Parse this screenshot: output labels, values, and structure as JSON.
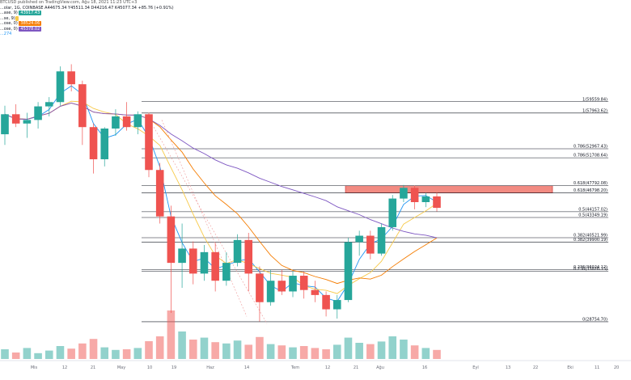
{
  "header": {
    "published": "BTCUSD published on TradingView.com, Ağu 18, 2021 11:23 UTC+3",
    "symbol_line": {
      "symbol": "...olar, 1G, COINBASE",
      "ohlc": "A44675.34  Y45511.34  D44216.47  K45077.34  +85.76 (+0.91%)"
    },
    "indicators": [
      {
        "name": "...ase, 9)",
        "value": "43917.43",
        "color": "#26a69a"
      },
      {
        "name": "...se, 9)",
        "value": "",
        "color": "#f7c948"
      },
      {
        "name": "...ose, 0)",
        "value": "38524.06",
        "color": "#f57c00"
      },
      {
        "name": "...ose, 0)",
        "value": "45378.02",
        "color": "#7e57c2"
      },
      {
        "name": "...274",
        "value": "",
        "color": "#2196f3"
      }
    ]
  },
  "x_axis": {
    "ticks": [
      "Mis",
      "12",
      "21",
      "May",
      "10",
      "19",
      "Haz",
      "14",
      "Tem",
      "12",
      "21",
      "Ağu",
      "16",
      "Eyl",
      "13",
      "22",
      "Eki",
      "11",
      "20"
    ]
  },
  "fib_levels": [
    {
      "label": "1(59559.84)",
      "price": 59559.84
    },
    {
      "label": "1(57963.62)",
      "price": 57963.62
    },
    {
      "label": "0.786(52967.43)",
      "price": 52967.43
    },
    {
      "label": "0.786(51708.64)",
      "price": 51708.64
    },
    {
      "label": "0.618(47792.08)",
      "price": 47792.08
    },
    {
      "label": "0.618(46798.20)",
      "price": 46798.2
    },
    {
      "label": "0.5(44157.02)",
      "price": 44157.02
    },
    {
      "label": "0.5(43349.19)",
      "price": 43349.19
    },
    {
      "label": "0.382(40521.99)",
      "price": 40521.99
    },
    {
      "label": "0.382(39900.19)",
      "price": 39900.19
    },
    {
      "label": "0.236(36024.12)",
      "price": 36024.12
    },
    {
      "label": "0.236(35826.15)",
      "price": 35826.15
    },
    {
      "label": "0(28754.70)",
      "price": 28754.7
    }
  ],
  "chart_data": {
    "type": "candlestick",
    "title": "",
    "xlabel": "",
    "ylabel": "",
    "ylim": [
      24000,
      67000
    ],
    "colors": {
      "up": "#26a69a",
      "down": "#ef5350",
      "resistance_zone": "#f28b82"
    },
    "x": [
      "Mis",
      "",
      "",
      "",
      "12",
      "",
      "",
      "21",
      "",
      "",
      "May",
      "",
      "",
      "10",
      "",
      "",
      "19",
      "",
      "",
      "",
      "Haz",
      "",
      "",
      "14",
      "",
      "",
      "",
      "Tem",
      "",
      "",
      "12",
      "",
      "",
      "21",
      "",
      "",
      "Ağu",
      "",
      "",
      "16"
    ],
    "ohlc": [
      [
        55000,
        59000,
        53500,
        57800
      ],
      [
        57800,
        59200,
        56000,
        56500
      ],
      [
        56500,
        58000,
        54500,
        57000
      ],
      [
        57000,
        59500,
        55800,
        58900
      ],
      [
        58900,
        60200,
        57500,
        59500
      ],
      [
        59500,
        64500,
        59000,
        63800
      ],
      [
        63800,
        64800,
        61000,
        62000
      ],
      [
        62000,
        62500,
        53500,
        56000
      ],
      [
        56000,
        56500,
        49500,
        51500
      ],
      [
        51500,
        56000,
        50500,
        55800
      ],
      [
        55800,
        58500,
        54800,
        57500
      ],
      [
        57500,
        59500,
        55500,
        56000
      ],
      [
        56000,
        58200,
        55000,
        57800
      ],
      [
        57800,
        58000,
        49000,
        50000
      ],
      [
        50000,
        51000,
        42500,
        43500
      ],
      [
        43500,
        45000,
        30000,
        37000
      ],
      [
        37000,
        42500,
        33500,
        39000
      ],
      [
        39000,
        40000,
        34000,
        35500
      ],
      [
        35500,
        39500,
        34500,
        38500
      ],
      [
        38500,
        39800,
        33000,
        34500
      ],
      [
        34500,
        38500,
        33800,
        37000
      ],
      [
        37000,
        41000,
        36500,
        40200
      ],
      [
        40200,
        41200,
        33000,
        35500
      ],
      [
        35500,
        36500,
        28800,
        31500
      ],
      [
        31500,
        36000,
        31000,
        34500
      ],
      [
        34500,
        36000,
        32500,
        33000
      ],
      [
        33000,
        35800,
        32200,
        35200
      ],
      [
        35200,
        35800,
        32000,
        33200
      ],
      [
        33200,
        34500,
        31500,
        32500
      ],
      [
        32500,
        33000,
        29500,
        30500
      ],
      [
        30500,
        32500,
        29200,
        31800
      ],
      [
        31800,
        40500,
        31500,
        39900
      ],
      [
        39900,
        41500,
        38000,
        40800
      ],
      [
        40800,
        41500,
        37500,
        38300
      ],
      [
        38300,
        42500,
        38000,
        42000
      ],
      [
        42000,
        46500,
        41500,
        46000
      ],
      [
        46000,
        47900,
        45500,
        47500
      ],
      [
        47500,
        47800,
        44500,
        45500
      ],
      [
        45500,
        46800,
        44800,
        46300
      ],
      [
        46300,
        46800,
        44200,
        44700
      ]
    ],
    "volume": [
      30,
      20,
      34,
      18,
      26,
      40,
      32,
      48,
      62,
      36,
      28,
      30,
      34,
      55,
      70,
      150,
      85,
      60,
      66,
      52,
      48,
      57,
      44,
      68,
      46,
      42,
      36,
      40,
      34,
      30,
      44,
      66,
      50,
      46,
      54,
      70,
      60,
      42,
      34,
      28
    ],
    "resistance_zone": {
      "from": 46798.2,
      "to": 47792.08
    }
  }
}
